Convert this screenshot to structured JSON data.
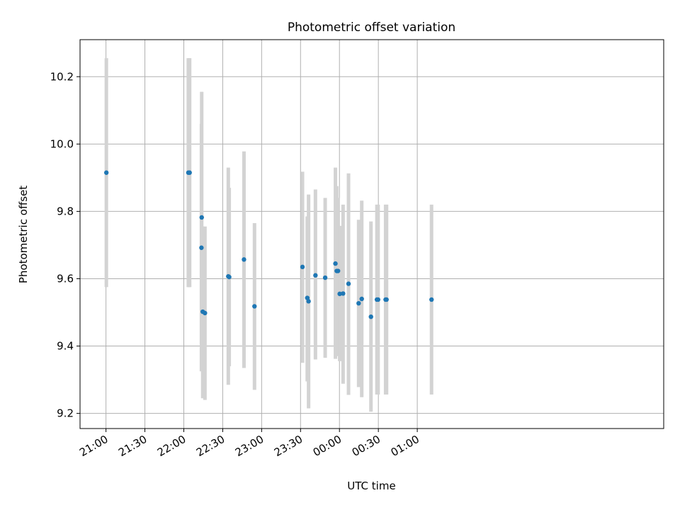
{
  "chart_data": {
    "type": "scatter",
    "title": "Photometric offset variation",
    "xlabel": "UTC time",
    "ylabel": "Photometric offset",
    "x_unit": "minutes after 21:00 UTC (axis shown as clock time)",
    "xlim": [
      -20,
      430
    ],
    "ylim": [
      9.155,
      10.31
    ],
    "grid": true,
    "x_ticks": [
      {
        "v": 0,
        "label": "21:00"
      },
      {
        "v": 30,
        "label": "21:30"
      },
      {
        "v": 60,
        "label": "22:00"
      },
      {
        "v": 90,
        "label": "22:30"
      },
      {
        "v": 120,
        "label": "23:00"
      },
      {
        "v": 150,
        "label": "23:30"
      },
      {
        "v": 180,
        "label": "00:00"
      },
      {
        "v": 210,
        "label": "00:30"
      },
      {
        "v": 240,
        "label": "01:00"
      }
    ],
    "y_ticks": [
      {
        "v": 9.2,
        "label": "9.2"
      },
      {
        "v": 9.4,
        "label": "9.4"
      },
      {
        "v": 9.6,
        "label": "9.6"
      },
      {
        "v": 9.8,
        "label": "9.8"
      },
      {
        "v": 10.0,
        "label": "10.0"
      },
      {
        "v": 10.2,
        "label": "10.2"
      }
    ],
    "colors": {
      "point": "#1f77b4",
      "errorbar": "#d3d3d3",
      "grid": "#b0b0b0"
    },
    "points": [
      {
        "t": 0.3,
        "y": 9.915,
        "lo": 9.575,
        "hi": 10.255
      },
      {
        "t": 63.5,
        "y": 9.915,
        "lo": 9.575,
        "hi": 10.255
      },
      {
        "t": 64.5,
        "y": 9.915,
        "lo": 9.575,
        "hi": 10.255
      },
      {
        "t": 73.8,
        "y": 9.782,
        "lo": 9.49,
        "hi": 10.155
      },
      {
        "t": 73.6,
        "y": 9.692,
        "lo": 9.325,
        "hi": 10.06
      },
      {
        "t": 74.6,
        "y": 9.502,
        "lo": 9.245,
        "hi": 9.755
      },
      {
        "t": 76.3,
        "y": 9.498,
        "lo": 9.24,
        "hi": 9.755
      },
      {
        "t": 94.3,
        "y": 9.607,
        "lo": 9.285,
        "hi": 9.93
      },
      {
        "t": 95.0,
        "y": 9.605,
        "lo": 9.34,
        "hi": 9.87
      },
      {
        "t": 106.4,
        "y": 9.657,
        "lo": 9.335,
        "hi": 9.978
      },
      {
        "t": 114.5,
        "y": 9.518,
        "lo": 9.27,
        "hi": 9.765
      },
      {
        "t": 151.5,
        "y": 9.635,
        "lo": 9.35,
        "hi": 9.918
      },
      {
        "t": 155.2,
        "y": 9.543,
        "lo": 9.295,
        "hi": 9.785
      },
      {
        "t": 156.2,
        "y": 9.533,
        "lo": 9.215,
        "hi": 9.85
      },
      {
        "t": 161.5,
        "y": 9.61,
        "lo": 9.36,
        "hi": 9.865
      },
      {
        "t": 169.0,
        "y": 9.603,
        "lo": 9.365,
        "hi": 9.84
      },
      {
        "t": 176.9,
        "y": 9.645,
        "lo": 9.362,
        "hi": 9.93
      },
      {
        "t": 177.9,
        "y": 9.623,
        "lo": 9.37,
        "hi": 9.875
      },
      {
        "t": 178.9,
        "y": 9.623,
        "lo": 9.38,
        "hi": 9.84
      },
      {
        "t": 180.2,
        "y": 9.555,
        "lo": 9.355,
        "hi": 9.757
      },
      {
        "t": 182.8,
        "y": 9.556,
        "lo": 9.288,
        "hi": 9.82
      },
      {
        "t": 187.0,
        "y": 9.585,
        "lo": 9.255,
        "hi": 9.913
      },
      {
        "t": 194.8,
        "y": 9.527,
        "lo": 9.278,
        "hi": 9.775
      },
      {
        "t": 197.2,
        "y": 9.54,
        "lo": 9.248,
        "hi": 9.832
      },
      {
        "t": 204.3,
        "y": 9.487,
        "lo": 9.205,
        "hi": 9.77
      },
      {
        "t": 208.9,
        "y": 9.538,
        "lo": 9.256,
        "hi": 9.82
      },
      {
        "t": 209.8,
        "y": 9.538,
        "lo": 9.256,
        "hi": 9.82
      },
      {
        "t": 215.6,
        "y": 9.538,
        "lo": 9.256,
        "hi": 9.82
      },
      {
        "t": 216.3,
        "y": 9.538,
        "lo": 9.256,
        "hi": 9.82
      },
      {
        "t": 251.0,
        "y": 9.538,
        "lo": 9.256,
        "hi": 9.82
      }
    ]
  }
}
